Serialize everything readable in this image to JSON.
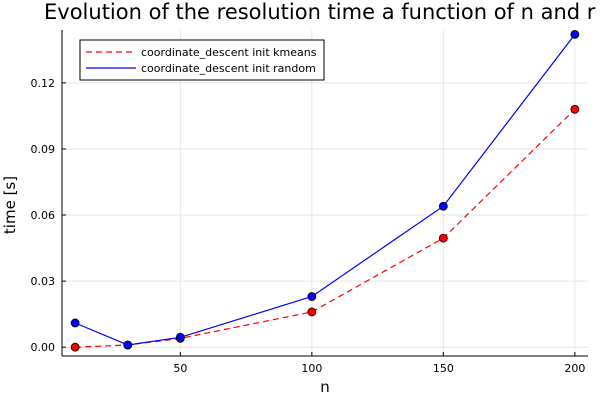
{
  "chart_data": {
    "type": "line",
    "title": "Evolution of the resolution time a function of n and r",
    "xlabel": "n",
    "ylabel": "time [s]",
    "xlim": [
      5,
      205
    ],
    "ylim": [
      -0.004,
      0.144
    ],
    "xticks": [
      50,
      100,
      150,
      200
    ],
    "yticks": [
      0.0,
      0.03,
      0.06,
      0.09,
      0.12
    ],
    "ytick_labels": [
      "0.00",
      "0.03",
      "0.06",
      "0.09",
      "0.12"
    ],
    "grid": true,
    "legend_position": "top-left",
    "x": [
      10,
      30,
      50,
      100,
      150,
      200
    ],
    "series": [
      {
        "name": "coordinate_descent init kmeans",
        "color": "#ff0000",
        "line_style": "dashed",
        "marker": "circle",
        "values": [
          0.0,
          0.001,
          0.004,
          0.016,
          0.0495,
          0.108
        ]
      },
      {
        "name": "coordinate_descent init random",
        "color": "#0000ff",
        "line_style": "solid",
        "marker": "circle",
        "values": [
          0.011,
          0.001,
          0.0045,
          0.023,
          0.064,
          0.142
        ]
      }
    ]
  }
}
